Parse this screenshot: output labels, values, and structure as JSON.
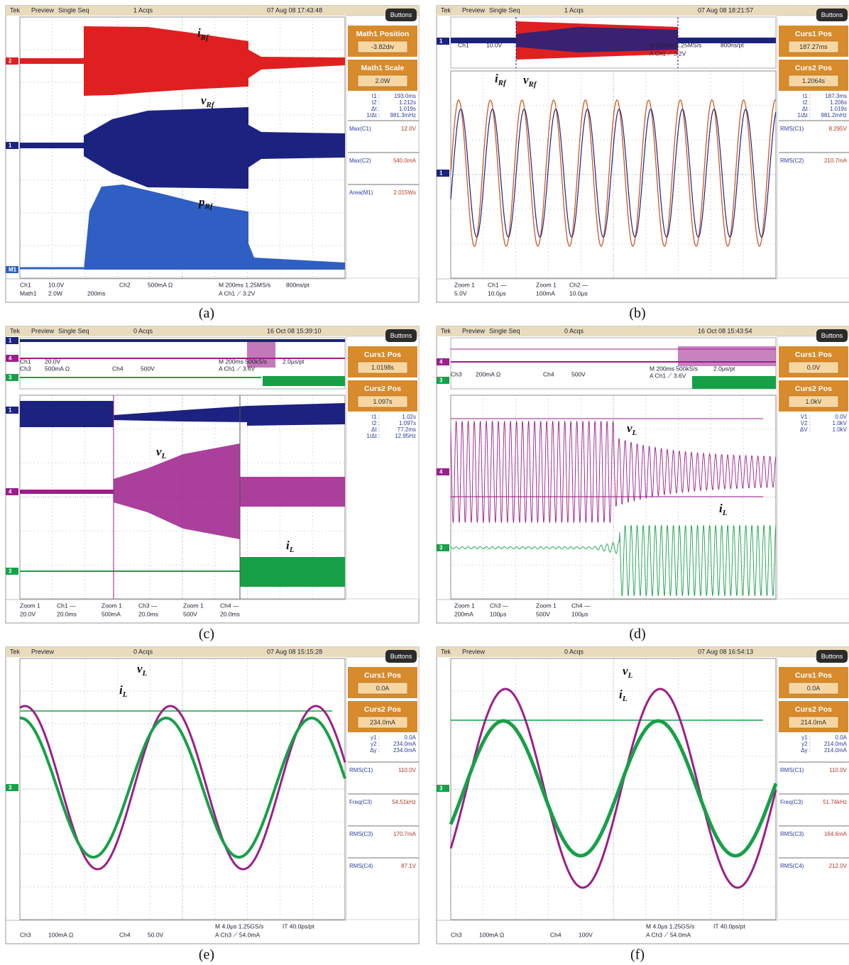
{
  "panels": [
    {
      "label": "(a)",
      "status": [
        "Tek",
        "Preview",
        "Single Seq",
        "1 Acqs",
        "07 Aug 08 17:43:48"
      ],
      "button": "Buttons",
      "menus": [
        {
          "title": "Math1 Position",
          "value": "-3.82div"
        },
        {
          "title": "Math1 Scale",
          "value": "2.0W"
        }
      ],
      "readouts": [
        {
          "name": "t1 :",
          "value": "193.0ms"
        },
        {
          "name": "t2 :",
          "value": "1.212s"
        },
        {
          "name": "Δt :",
          "value": "1.019s"
        },
        {
          "name": "1/Δt :",
          "value": "981.3mHz"
        }
      ],
      "measurements": [
        {
          "name": "Max(C1)",
          "value": "12.0V"
        },
        {
          "name": "Max(C2)",
          "value": "540.0mA"
        },
        {
          "name": "Area(M1)",
          "value": "2.015Ws"
        }
      ],
      "overview": [],
      "footer": [
        [
          "Ch1",
          "10.0V",
          "Ch2",
          "500mA Ω",
          "M 200ms 1.25MS/s",
          "800ns/pt"
        ],
        [
          "Math1",
          "2.0W",
          "200ms",
          "A Ch1 ⟋ 3.2V"
        ]
      ],
      "markers": [
        "2",
        "1",
        "M1"
      ],
      "annotations": [
        {
          "symbol": "i",
          "sub": "Rf"
        },
        {
          "symbol": "v",
          "sub": "Rf"
        },
        {
          "symbol": "p",
          "sub": "Rf"
        }
      ]
    },
    {
      "label": "(b)",
      "status": [
        "Tek",
        "Preview",
        "Single Seq",
        "1 Acqs",
        "07 Aug 08 18:21:57"
      ],
      "button": "Buttons",
      "menus": [
        {
          "title": "Curs1 Pos",
          "value": "187.27ms"
        },
        {
          "title": "Curs2 Pos",
          "value": "1.2064s"
        }
      ],
      "readouts": [
        {
          "name": "t1 :",
          "value": "187.3ms"
        },
        {
          "name": "t2 :",
          "value": "1.206s"
        },
        {
          "name": "Δt :",
          "value": "1.019s"
        },
        {
          "name": "1/Δt :",
          "value": "981.2mHz"
        }
      ],
      "measurements": [
        {
          "name": "RMS(C1)",
          "value": "8.295V"
        },
        {
          "name": "RMS(C2)",
          "value": "210.7mA"
        }
      ],
      "overview": [
        "Ch1",
        "10.0V",
        "M 200ms 1.25MS/s",
        "800ns/pt",
        "A Ch1 ⟋ 3.2V"
      ],
      "footer": [
        [
          "Zoom 1",
          "Ch1 —",
          "Zoom 1",
          "Ch2 —"
        ],
        [
          "5.0V",
          "10.0μs",
          "100mA",
          "10.0μs"
        ]
      ],
      "markers": [
        "1",
        "1"
      ],
      "annotations": [
        {
          "symbol": "i",
          "sub": "Rf"
        },
        {
          "symbol": "v",
          "sub": "Rf"
        }
      ]
    },
    {
      "label": "(c)",
      "status": [
        "Tek",
        "Preview",
        "Single Seq",
        "0 Acqs",
        "16 Oct 08 15:39:10"
      ],
      "button": "Buttons",
      "menus": [
        {
          "title": "Curs1 Pos",
          "value": "1.0198s"
        },
        {
          "title": "Curs2 Pos",
          "value": "1.097s"
        }
      ],
      "readouts": [
        {
          "name": "t1 :",
          "value": "1.02s"
        },
        {
          "name": "t2 :",
          "value": "1.097s"
        },
        {
          "name": "Δt :",
          "value": "77.2ms"
        },
        {
          "name": "1/Δt :",
          "value": "12.95Hz"
        }
      ],
      "measurements": [],
      "overview": [
        "Ch1",
        "20.0V",
        "Ch3",
        "500mA Ω",
        "Ch4",
        "500V",
        "M 200ms 500kS/s",
        "2.0μs/pt",
        "A Ch1 ⟋ 3.6V"
      ],
      "footer": [
        [
          "Zoom 1",
          "Ch1 —",
          "Zoom 1",
          "Ch3 —",
          "Zoom 1",
          "Ch4 —"
        ],
        [
          "20.0V",
          "20.0ms",
          "500mA",
          "20.0ms",
          "500V",
          "20.0ms"
        ]
      ],
      "markers": [
        "1",
        "4",
        "3",
        "1",
        "4",
        "3"
      ],
      "annotations": [
        {
          "symbol": "v",
          "sub": "L"
        },
        {
          "symbol": "i",
          "sub": "L"
        }
      ]
    },
    {
      "label": "(d)",
      "status": [
        "Tek",
        "Preview",
        "Single Seq",
        "0 Acqs",
        "16 Oct 08 15:43:54"
      ],
      "button": "Buttons",
      "menus": [
        {
          "title": "Curs1 Pos",
          "value": "0.0V"
        },
        {
          "title": "Curs2 Pos",
          "value": "1.0kV"
        }
      ],
      "readouts": [
        {
          "name": "V1 :",
          "value": "0.0V"
        },
        {
          "name": "V2 :",
          "value": "1.0kV"
        },
        {
          "name": "ΔV :",
          "value": "1.0kV"
        }
      ],
      "measurements": [],
      "overview": [
        "Ch3",
        "200mA Ω",
        "Ch4",
        "500V",
        "M 200ms 500kS/s",
        "2.0μs/pt",
        "A Ch1 ⟋ 3.6V"
      ],
      "footer": [
        [
          "Zoom 1",
          "Ch3 —",
          "Zoom 1",
          "Ch4 —"
        ],
        [
          "200mA",
          "100μs",
          "500V",
          "100μs"
        ]
      ],
      "markers": [
        "4",
        "3",
        "4",
        "3"
      ],
      "annotations": [
        {
          "symbol": "v",
          "sub": "L"
        },
        {
          "symbol": "i",
          "sub": "L"
        }
      ]
    },
    {
      "label": "(e)",
      "status": [
        "Tek",
        "Preview",
        "",
        "0 Acqs",
        "07 Aug 08 15:15:28"
      ],
      "button": "Buttons",
      "menus": [
        {
          "title": "Curs1 Pos",
          "value": "0.0A"
        },
        {
          "title": "Curs2 Pos",
          "value": "234.0mA"
        }
      ],
      "readouts": [
        {
          "name": "y1 :",
          "value": "0.0A"
        },
        {
          "name": "y2 :",
          "value": "234.0mA"
        },
        {
          "name": "Δy :",
          "value": "234.0mA"
        }
      ],
      "measurements": [
        {
          "name": "RMS(C1)",
          "value": "110.0V"
        },
        {
          "name": "Freq(C3)",
          "value": "54.51kHz"
        },
        {
          "name": "RMS(C3)",
          "value": "170.7mA"
        },
        {
          "name": "RMS(C4)",
          "value": "87.1V"
        }
      ],
      "overview": [],
      "footer": [
        [
          "M 4.0μs 1.25GS/s",
          "IT 40.0ps/pt"
        ],
        [
          "Ch3",
          "100mA Ω",
          "Ch4",
          "50.0V",
          "A Ch3 ⟋ 54.0mA"
        ]
      ],
      "markers": [
        "3"
      ],
      "annotations": [
        {
          "symbol": "v",
          "sub": "L"
        },
        {
          "symbol": "i",
          "sub": "L"
        }
      ]
    },
    {
      "label": "(f)",
      "status": [
        "Tek",
        "Preview",
        "",
        "0 Acqs",
        "07 Aug 08 16:54:13"
      ],
      "button": "Buttons",
      "menus": [
        {
          "title": "Curs1 Pos",
          "value": "0.0A"
        },
        {
          "title": "Curs2 Pos",
          "value": "214.0mA"
        }
      ],
      "readouts": [
        {
          "name": "y1 :",
          "value": "0.0A"
        },
        {
          "name": "y2 :",
          "value": "214.0mA"
        },
        {
          "name": "Δy :",
          "value": "214.0mA"
        }
      ],
      "measurements": [
        {
          "name": "RMS(C1)",
          "value": "110.0V"
        },
        {
          "name": "Freq(C3)",
          "value": "51.74kHz"
        },
        {
          "name": "RMS(C3)",
          "value": "164.6mA"
        },
        {
          "name": "RMS(C4)",
          "value": "212.0V"
        }
      ],
      "overview": [],
      "footer": [
        [
          "M 4.0μs 1.25GS/s",
          "IT 40.0ps/pt"
        ],
        [
          "Ch3",
          "100mA Ω",
          "Ch4",
          "100V",
          "A Ch3 ⟋ 54.0mA"
        ]
      ],
      "markers": [
        "3"
      ],
      "annotations": [
        {
          "symbol": "v",
          "sub": "L"
        },
        {
          "symbol": "i",
          "sub": "L"
        }
      ]
    }
  ]
}
